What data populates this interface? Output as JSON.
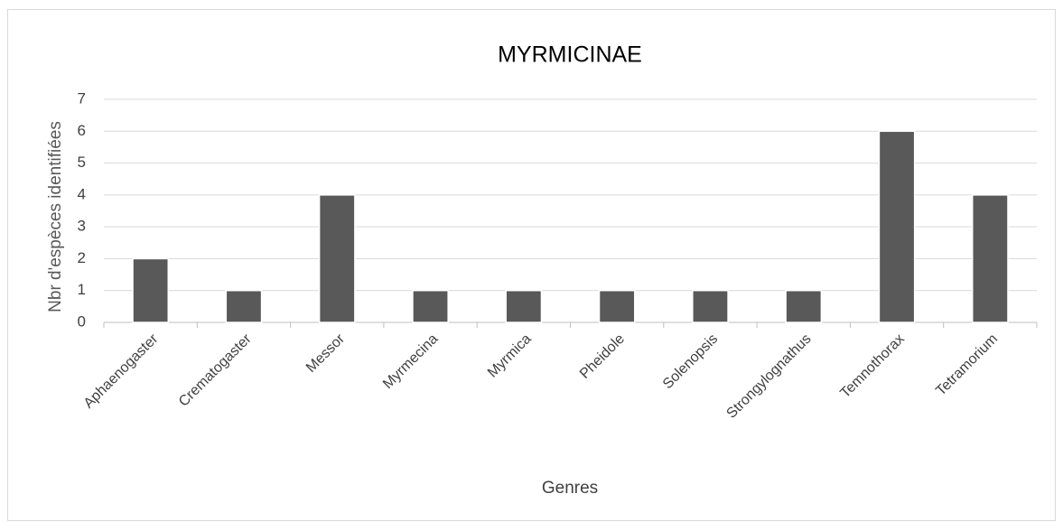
{
  "chart_data": {
    "type": "bar",
    "title": "MYRMICINAE",
    "x_label": "Genres",
    "y_label": "Nbr d'espèces identifiées",
    "categories": [
      "Aphaenogaster",
      "Crematogaster",
      "Messor",
      "Myrmecina",
      "Myrmica",
      "Pheidole",
      "Solenopsis",
      "Strongylognathus",
      "Temnothorax",
      "Tetramorium"
    ],
    "values": [
      2,
      1,
      4,
      1,
      1,
      1,
      1,
      1,
      6,
      4
    ],
    "color": "#595959",
    "ylim": [
      0,
      7
    ],
    "yticks": [
      0,
      1,
      2,
      3,
      4,
      5,
      6,
      7
    ],
    "grid": true
  }
}
